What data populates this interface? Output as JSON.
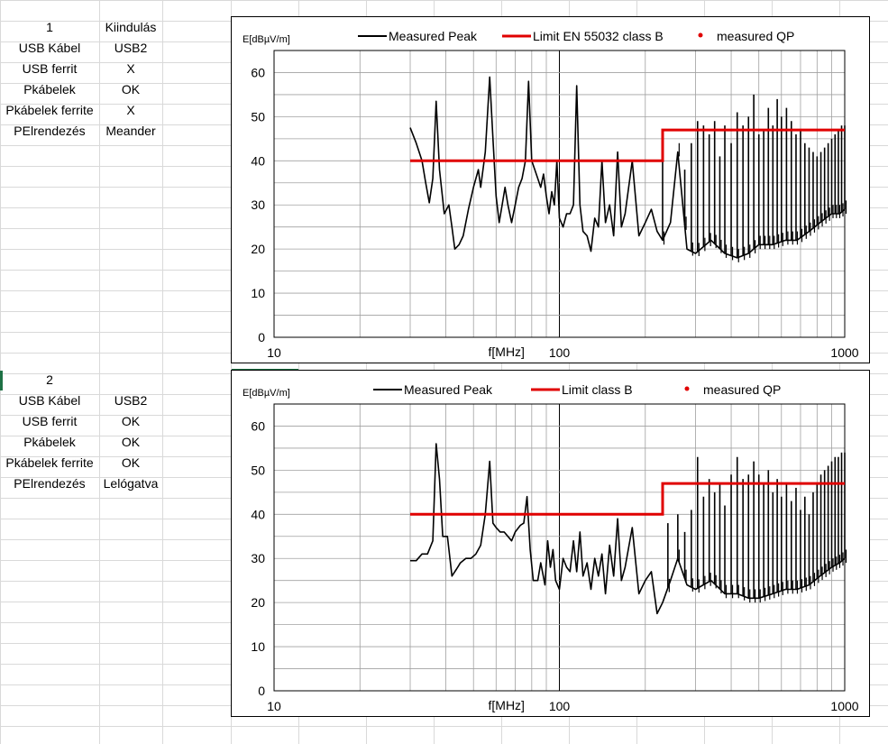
{
  "spreadsheet": {
    "blocks": [
      {
        "header": [
          "1",
          "Kiindulás"
        ],
        "rows": [
          [
            "USB Kábel",
            "USB2"
          ],
          [
            "USB ferrit",
            "X"
          ],
          [
            "Pkábelek",
            "OK"
          ],
          [
            "Pkábelek ferrite",
            "X"
          ],
          [
            "PElrendezés",
            "Meander"
          ]
        ]
      },
      {
        "header": [
          "2",
          ""
        ],
        "rows": [
          [
            "USB Kábel",
            "USB2"
          ],
          [
            "USB ferrit",
            "OK"
          ],
          [
            "Pkábelek",
            "OK"
          ],
          [
            "Pkábelek ferrite",
            "OK"
          ],
          [
            "PElrendezés",
            "Lelógatva"
          ]
        ]
      }
    ]
  },
  "colors": {
    "peak": "#000000",
    "limit": "#e00000",
    "qp": "#e00000",
    "grid": "#a0a0a0",
    "cell_grid": "#d9d9d9"
  },
  "chart_data": [
    {
      "type": "line",
      "ylabel": "E[dBµV/m]",
      "xlabel": "f[MHz]",
      "xscale": "log",
      "xlim": [
        10,
        1000
      ],
      "ylim": [
        0,
        65
      ],
      "yticks": [
        0,
        10,
        20,
        30,
        40,
        50,
        60
      ],
      "xticks": [
        10,
        100,
        1000
      ],
      "xtick_labels": [
        "10",
        "100",
        "1000"
      ],
      "legend": {
        "position": "top",
        "entries": [
          "Measured Peak",
          "Limit EN 55032 class B",
          "measured QP"
        ]
      },
      "series": [
        {
          "name": "Measured Peak",
          "style": "line",
          "color": "#000000",
          "points": [
            [
              30,
              47.5
            ],
            [
              31.5,
              44
            ],
            [
              33,
              40
            ],
            [
              34,
              35
            ],
            [
              35,
              30.5
            ],
            [
              36,
              36
            ],
            [
              37,
              53.5
            ],
            [
              38,
              38
            ],
            [
              39.5,
              28
            ],
            [
              41,
              30
            ],
            [
              42,
              25
            ],
            [
              43,
              20
            ],
            [
              44.5,
              21
            ],
            [
              46,
              23
            ],
            [
              48,
              29
            ],
            [
              50,
              34
            ],
            [
              52,
              38
            ],
            [
              53,
              34
            ],
            [
              55,
              42
            ],
            [
              57,
              59
            ],
            [
              58.5,
              45
            ],
            [
              60,
              32
            ],
            [
              61.5,
              26
            ],
            [
              63,
              30
            ],
            [
              64.5,
              34
            ],
            [
              66,
              30
            ],
            [
              68,
              26
            ],
            [
              70,
              30
            ],
            [
              72,
              34
            ],
            [
              74,
              36
            ],
            [
              76,
              40
            ],
            [
              78,
              58
            ],
            [
              80,
              40
            ],
            [
              82,
              38
            ],
            [
              84,
              36
            ],
            [
              86,
              34
            ],
            [
              88,
              37
            ],
            [
              90,
              32
            ],
            [
              92,
              28
            ],
            [
              94,
              33
            ],
            [
              96,
              30
            ],
            [
              98,
              40
            ],
            [
              100,
              27
            ],
            [
              103,
              25
            ],
            [
              106,
              28
            ],
            [
              109,
              28
            ],
            [
              112,
              30
            ],
            [
              115,
              57
            ],
            [
              118,
              30
            ],
            [
              121,
              24
            ],
            [
              125,
              23
            ],
            [
              129,
              19.5
            ],
            [
              133,
              27
            ],
            [
              137,
              25
            ],
            [
              141,
              40
            ],
            [
              145,
              26
            ],
            [
              150,
              30
            ],
            [
              155,
              23
            ],
            [
              160,
              42
            ],
            [
              165,
              25
            ],
            [
              170,
              28
            ],
            [
              180,
              40
            ],
            [
              190,
              23
            ],
            [
              200,
              26
            ],
            [
              210,
              29
            ],
            [
              220,
              24
            ],
            [
              230,
              22
            ],
            [
              245,
              26
            ],
            [
              260,
              42
            ],
            [
              280,
              20
            ],
            [
              300,
              19
            ],
            [
              340,
              22
            ],
            [
              380,
              19
            ],
            [
              420,
              18
            ],
            [
              460,
              19
            ],
            [
              500,
              21
            ],
            [
              560,
              21
            ],
            [
              620,
              22
            ],
            [
              680,
              22
            ],
            [
              750,
              24
            ],
            [
              820,
              26
            ],
            [
              900,
              28
            ],
            [
              960,
              28
            ],
            [
              1000,
              29
            ]
          ]
        },
        {
          "name": "Measured Peak harmonics",
          "style": "impulses",
          "color": "#000000",
          "peaks": [
            [
              230,
              40
            ],
            [
              260,
              42
            ],
            [
              275,
              38
            ],
            [
              290,
              44
            ],
            [
              305,
              49
            ],
            [
              320,
              48
            ],
            [
              335,
              46
            ],
            [
              350,
              49
            ],
            [
              365,
              41
            ],
            [
              380,
              48
            ],
            [
              400,
              44
            ],
            [
              420,
              51
            ],
            [
              440,
              48
            ],
            [
              460,
              50
            ],
            [
              480,
              55
            ],
            [
              500,
              46
            ],
            [
              520,
              47
            ],
            [
              540,
              52
            ],
            [
              560,
              48
            ],
            [
              580,
              54
            ],
            [
              600,
              50
            ],
            [
              625,
              52
            ],
            [
              650,
              49
            ],
            [
              675,
              46
            ],
            [
              700,
              47
            ],
            [
              725,
              44
            ],
            [
              750,
              43
            ],
            [
              775,
              42
            ],
            [
              800,
              41
            ],
            [
              825,
              42
            ],
            [
              850,
              43
            ],
            [
              875,
              44
            ],
            [
              900,
              45
            ],
            [
              925,
              46
            ],
            [
              950,
              47
            ],
            [
              975,
              48
            ],
            [
              1000,
              48
            ]
          ]
        },
        {
          "name": "Limit EN 55032 class B",
          "style": "step",
          "color": "#e00000",
          "points": [
            [
              30,
              40
            ],
            [
              230,
              40
            ],
            [
              230,
              47
            ],
            [
              1000,
              47
            ]
          ]
        }
      ]
    },
    {
      "type": "line",
      "ylabel": "E[dBµV/m]",
      "xlabel": "f[MHz]",
      "xscale": "log",
      "xlim": [
        10,
        1000
      ],
      "ylim": [
        0,
        65
      ],
      "yticks": [
        0,
        10,
        20,
        30,
        40,
        50,
        60
      ],
      "xticks": [
        10,
        100,
        1000
      ],
      "xtick_labels": [
        "10",
        "100",
        "1000"
      ],
      "legend": {
        "position": "top",
        "entries": [
          "Measured Peak",
          "Limit class B",
          "measured QP"
        ]
      },
      "series": [
        {
          "name": "Measured Peak",
          "style": "line",
          "color": "#000000",
          "points": [
            [
              30,
              29.5
            ],
            [
              31.5,
              29.5
            ],
            [
              33,
              31
            ],
            [
              34.5,
              31
            ],
            [
              36,
              34
            ],
            [
              37,
              56
            ],
            [
              38,
              48
            ],
            [
              39,
              35
            ],
            [
              40.5,
              35
            ],
            [
              42,
              26
            ],
            [
              43.5,
              27.5
            ],
            [
              45,
              29
            ],
            [
              47,
              30
            ],
            [
              49,
              30
            ],
            [
              51,
              31
            ],
            [
              53,
              33
            ],
            [
              55,
              40
            ],
            [
              57,
              52
            ],
            [
              58.5,
              38
            ],
            [
              60,
              37
            ],
            [
              62,
              36
            ],
            [
              64,
              36
            ],
            [
              66,
              35
            ],
            [
              68,
              34
            ],
            [
              70,
              36
            ],
            [
              73,
              37.5
            ],
            [
              75,
              38
            ],
            [
              77,
              44
            ],
            [
              79,
              32
            ],
            [
              81,
              25
            ],
            [
              84,
              25
            ],
            [
              86,
              29
            ],
            [
              89,
              24
            ],
            [
              91,
              34
            ],
            [
              93,
              28
            ],
            [
              95,
              32
            ],
            [
              97,
              25
            ],
            [
              100,
              23
            ],
            [
              103,
              30
            ],
            [
              106,
              28
            ],
            [
              109,
              27
            ],
            [
              112,
              34
            ],
            [
              115,
              27
            ],
            [
              118,
              36
            ],
            [
              121,
              26
            ],
            [
              125,
              29
            ],
            [
              129,
              23
            ],
            [
              133,
              30
            ],
            [
              137,
              26
            ],
            [
              141,
              31
            ],
            [
              145,
              22
            ],
            [
              150,
              33
            ],
            [
              155,
              26
            ],
            [
              160,
              39
            ],
            [
              165,
              25
            ],
            [
              170,
              28
            ],
            [
              180,
              37
            ],
            [
              190,
              22
            ],
            [
              200,
              25
            ],
            [
              210,
              27
            ],
            [
              220,
              17.5
            ],
            [
              230,
              20
            ],
            [
              245,
              25
            ],
            [
              260,
              30
            ],
            [
              280,
              24
            ],
            [
              300,
              23
            ],
            [
              340,
              25
            ],
            [
              380,
              22
            ],
            [
              420,
              22
            ],
            [
              460,
              21
            ],
            [
              500,
              21
            ],
            [
              560,
              22
            ],
            [
              620,
              23
            ],
            [
              680,
              23
            ],
            [
              750,
              24
            ],
            [
              820,
              26
            ],
            [
              900,
              28
            ],
            [
              960,
              29
            ],
            [
              1000,
              30
            ]
          ]
        },
        {
          "name": "Measured Peak harmonics",
          "style": "impulses",
          "color": "#000000",
          "peaks": [
            [
              240,
              38
            ],
            [
              260,
              40
            ],
            [
              275,
              36
            ],
            [
              290,
              41
            ],
            [
              305,
              53
            ],
            [
              320,
              44
            ],
            [
              335,
              48
            ],
            [
              350,
              45
            ],
            [
              365,
              47
            ],
            [
              380,
              42
            ],
            [
              400,
              49
            ],
            [
              420,
              53
            ],
            [
              440,
              48
            ],
            [
              460,
              49
            ],
            [
              480,
              52
            ],
            [
              500,
              49
            ],
            [
              520,
              47
            ],
            [
              540,
              50
            ],
            [
              560,
              45
            ],
            [
              580,
              48
            ],
            [
              600,
              44
            ],
            [
              625,
              47
            ],
            [
              650,
              43
            ],
            [
              675,
              46
            ],
            [
              700,
              41
            ],
            [
              725,
              44
            ],
            [
              750,
              40
            ],
            [
              775,
              45
            ],
            [
              800,
              47
            ],
            [
              825,
              49
            ],
            [
              850,
              50
            ],
            [
              875,
              51
            ],
            [
              900,
              52
            ],
            [
              925,
              53
            ],
            [
              950,
              53
            ],
            [
              975,
              54
            ],
            [
              1000,
              54
            ]
          ]
        },
        {
          "name": "Limit class B",
          "style": "step",
          "color": "#e00000",
          "points": [
            [
              30,
              40
            ],
            [
              230,
              40
            ],
            [
              230,
              47
            ],
            [
              1000,
              47
            ]
          ]
        }
      ]
    }
  ]
}
